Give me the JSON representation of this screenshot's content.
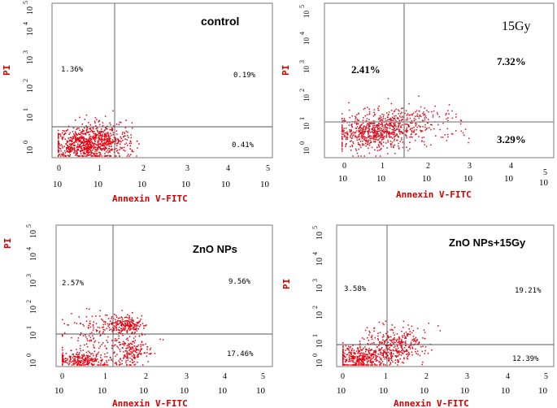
{
  "chart_data": [
    {
      "type": "scatter",
      "title": "control",
      "xlabel": "Annexin V-FITC",
      "ylabel": "PI",
      "xlim": [
        0,
        5
      ],
      "ylim": [
        0,
        5
      ],
      "x_ticks": [
        "0",
        "1",
        "2",
        "3",
        "4",
        "5"
      ],
      "y_ticks": [
        "0",
        "1",
        "2",
        "3",
        "4",
        "5"
      ],
      "tick_base": "10",
      "quadrants": {
        "upper_left": "1.36%",
        "upper_right": "0.19%",
        "lower_right": "0.41%"
      },
      "gate": {
        "x": 1.3,
        "y": 0.95
      },
      "point_color": "#e8000e"
    },
    {
      "type": "scatter",
      "title": "15Gy",
      "xlabel": "Annexin V-FITC",
      "ylabel": "PI",
      "xlim": [
        0,
        5
      ],
      "ylim": [
        0,
        5
      ],
      "x_ticks": [
        "0",
        "1",
        "2",
        "3",
        "4",
        "5"
      ],
      "y_ticks": [
        "0",
        "1",
        "2",
        "3",
        "4",
        "5"
      ],
      "tick_base": "10",
      "quadrants": {
        "upper_left": "2.41%",
        "upper_right": "7.32%",
        "lower_right": "3.29%"
      },
      "gate": {
        "x": 1.5,
        "y": 1.0
      },
      "point_color": "#d81020"
    },
    {
      "type": "scatter",
      "title": "ZnO NPs",
      "xlabel": "Annexin V-FITC",
      "ylabel": "PI",
      "xlim": [
        0,
        5
      ],
      "ylim": [
        0,
        5
      ],
      "x_ticks": [
        "0",
        "1",
        "2",
        "3",
        "4",
        "5"
      ],
      "y_ticks": [
        "0",
        "1",
        "2",
        "3",
        "4",
        "5"
      ],
      "tick_base": "10",
      "quadrants": {
        "upper_left": "2.57%",
        "upper_right": "9.56%",
        "lower_right": "17.46%"
      },
      "gate": {
        "x": 1.3,
        "y": 1.1
      },
      "point_color": "#e8000e"
    },
    {
      "type": "scatter",
      "title": "ZnO NPs+15Gy",
      "xlabel": "Annexin V-FITC",
      "ylabel": "PI",
      "xlim": [
        0,
        5
      ],
      "ylim": [
        0,
        5
      ],
      "x_ticks": [
        "0",
        "1",
        "2",
        "3",
        "4",
        "5"
      ],
      "y_ticks": [
        "0",
        "1",
        "2",
        "3",
        "4",
        "5"
      ],
      "tick_base": "10",
      "quadrants": {
        "upper_left": "3.58%",
        "upper_right": "19.21%",
        "lower_right": "12.39%"
      },
      "gate": {
        "x": 1.1,
        "y": 0.7
      },
      "point_color": "#e8000e"
    }
  ]
}
